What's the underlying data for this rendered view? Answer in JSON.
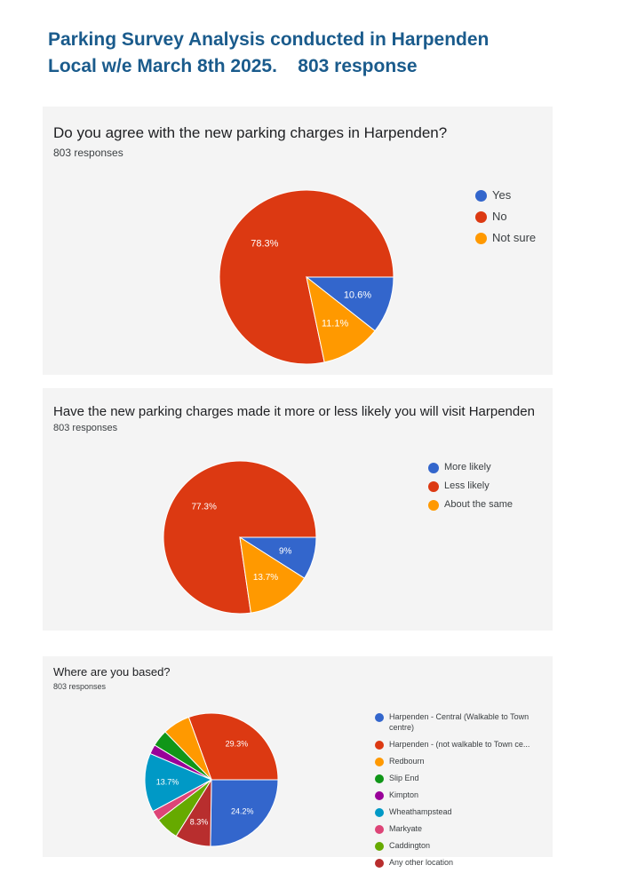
{
  "header": {
    "line1": "Parking Survey Analysis conducted in Harpenden",
    "line2": "Local w/e March 8th 2025.    803 response"
  },
  "chart_data": [
    {
      "type": "pie",
      "title": "Do you agree with the new parking charges in Harpenden?",
      "subtitle": "803 responses",
      "legend_position": "right",
      "slices": [
        {
          "label": "Yes",
          "value": 10.6,
          "display": "10.6%",
          "color": "#3366cc"
        },
        {
          "label": "No",
          "value": 78.3,
          "display": "78.3%",
          "color": "#dc3912"
        },
        {
          "label": "Not sure",
          "value": 11.1,
          "display": "11.1%",
          "color": "#ff9900"
        }
      ]
    },
    {
      "type": "pie",
      "title": "Have the new parking charges made it more or less likely you will visit Harpenden",
      "subtitle": "803 responses",
      "legend_position": "right",
      "slices": [
        {
          "label": "More likely",
          "value": 9,
          "display": "9%",
          "color": "#3366cc"
        },
        {
          "label": "Less likely",
          "value": 77.3,
          "display": "77.3%",
          "color": "#dc3912"
        },
        {
          "label": "About the same",
          "value": 13.7,
          "display": "13.7%",
          "color": "#ff9900"
        }
      ]
    },
    {
      "type": "pie",
      "title": "Where are you based?",
      "subtitle": "803 responses",
      "legend_position": "right",
      "slices": [
        {
          "label": "Harpenden - Central (Walkable to Town centre)",
          "value": 24.2,
          "display": "24.2%",
          "color": "#3366cc"
        },
        {
          "label": "Harpenden - (not walkable to Town ce...",
          "value": 29.3,
          "display": "29.3%",
          "color": "#dc3912"
        },
        {
          "label": "Redbourn",
          "value": 6.4,
          "display": "",
          "color": "#ff9900"
        },
        {
          "label": "Slip End",
          "value": 3.9,
          "display": "",
          "color": "#109618"
        },
        {
          "label": "Kimpton",
          "value": 2.2,
          "display": "",
          "color": "#990099"
        },
        {
          "label": "Wheathampstead",
          "value": 13.7,
          "display": "13.7%",
          "color": "#0099c6"
        },
        {
          "label": "Markyate",
          "value": 2.4,
          "display": "",
          "color": "#dd4477"
        },
        {
          "label": "Caddington",
          "value": 5.5,
          "display": "",
          "color": "#66aa00"
        },
        {
          "label": "Any other location",
          "value": 8.3,
          "display": "8.3%",
          "color": "#b82e2e"
        }
      ]
    }
  ]
}
